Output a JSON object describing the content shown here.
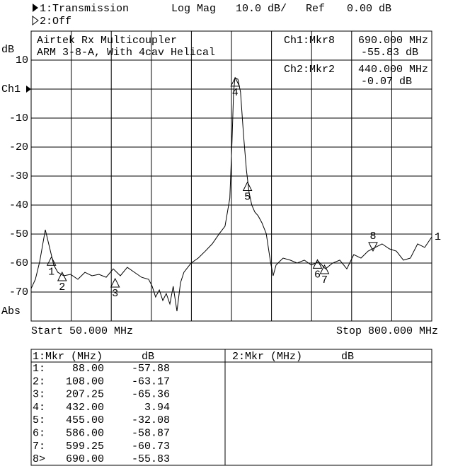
{
  "chart_data": {
    "type": "line",
    "header": {
      "channel_2": "2:Off",
      "format": "Log Mag",
      "scale": "10.0 dB/",
      "ref_label": "Ref",
      "ref_value": "0.00 dB"
    },
    "annotations": [
      "Airtek Rx Multicoupler",
      "ARM 3-8-A, With 4cav Helical"
    ],
    "readouts": [
      {
        "name": "Ch1:Mkr8",
        "freq": "690.000 MHz",
        "level": "-55.83 dB"
      },
      {
        "name": "Ch2:Mkr2",
        "freq": "440.000 MHz",
        "level": "-0.07 dB"
      }
    ],
    "y_label": "dB",
    "y_bottom_label": "Abs",
    "start_label": "Start 50.000 MHz",
    "stop_label": "Stop 800.000 MHz",
    "trace_label": "1",
    "xlim": [
      50,
      800
    ],
    "xticks": [
      50,
      125,
      200,
      275,
      350,
      425,
      500,
      575,
      650,
      725,
      800
    ],
    "ylim": [
      -80,
      20
    ],
    "yticks": [
      10,
      {
        "value": 0,
        "label": "Ch1"
      },
      -10,
      -20,
      -30,
      -40,
      -50,
      -60,
      -70
    ],
    "grid": true,
    "x": [
      50,
      58,
      66,
      76.5,
      84.5,
      92.4,
      100,
      111,
      124,
      137.5,
      150.7,
      164,
      177,
      190.5,
      203.7,
      217,
      230,
      243.5,
      256.7,
      270,
      276.6,
      283,
      290,
      296.5,
      303,
      309.7,
      316,
      323,
      329.6,
      336,
      349.5,
      362.7,
      376,
      389,
      402.5,
      413,
      422,
      426,
      429,
      431.6,
      437,
      442,
      447.5,
      453,
      458,
      463,
      468.7,
      475,
      482,
      490,
      498,
      503,
      508.5,
      515,
      521.7,
      535,
      548,
      561.5,
      574.7,
      588,
      601,
      614.5,
      627.7,
      641,
      654,
      667.5,
      680.7,
      694,
      707,
      720.5,
      733.7,
      747,
      760,
      773.5,
      786.7,
      800
    ],
    "series": [
      {
        "name": "1:Transmission",
        "color": "#000000",
        "values": [
          -68.8,
          -65.6,
          -59.5,
          -48.5,
          -54.6,
          -60.7,
          -63.2,
          -64.4,
          -63.9,
          -65.6,
          -63.2,
          -64.4,
          -63.9,
          -64.9,
          -62,
          -64.4,
          -61.5,
          -63.2,
          -64.9,
          -65.6,
          -68,
          -71.7,
          -69.3,
          -72.9,
          -70.5,
          -74.1,
          -68,
          -76.6,
          -66.8,
          -63.2,
          -60,
          -58.3,
          -55.9,
          -53.4,
          -49.8,
          -47.3,
          -37.6,
          -18,
          -1,
          3.9,
          3.4,
          -1,
          -15.6,
          -27.8,
          -35.6,
          -40,
          -42.4,
          -43.7,
          -46.1,
          -49.8,
          -59.5,
          -64.4,
          -60.7,
          -59.5,
          -58.3,
          -59,
          -60,
          -59,
          -60.7,
          -59.5,
          -62,
          -60,
          -59,
          -62,
          -57.1,
          -58.3,
          -55.9,
          -54.6,
          -53.4,
          -55.1,
          -55.9,
          -59,
          -58.3,
          -53.4,
          -54.6,
          -51
        ]
      }
    ],
    "markers": {
      "names": [
        "1",
        "2",
        "3",
        "4",
        "5",
        "6",
        "7",
        "8"
      ],
      "row_labels": [
        "1:",
        "2:",
        "3:",
        "4:",
        "5:",
        "6:",
        "7:",
        "8>"
      ],
      "x": [
        88,
        108,
        207.25,
        432,
        455,
        586,
        599.25,
        690
      ],
      "x_labels": [
        "88.00",
        "108.00",
        "207.25",
        "432.00",
        "455.00",
        "586.00",
        "599.25",
        "690.00"
      ],
      "values": [
        -57.88,
        -63.17,
        -65.36,
        3.94,
        -32.08,
        -58.87,
        -60.73,
        -55.83
      ]
    },
    "table_headers": [
      "1:Mkr (MHz)",
      "dB",
      "2:Mkr (MHz)",
      "dB"
    ]
  }
}
